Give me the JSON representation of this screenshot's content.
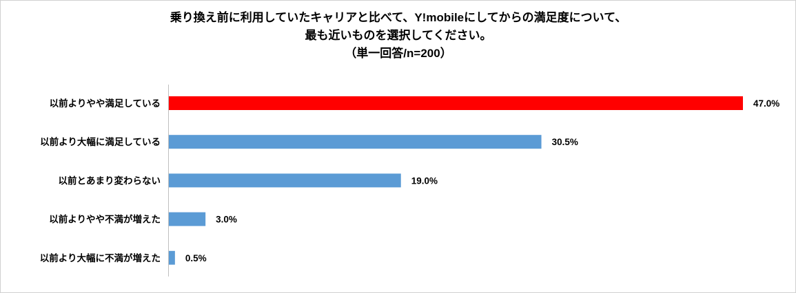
{
  "chart_data": {
    "type": "bar",
    "orientation": "horizontal",
    "title": [
      "乗り換え前に利用していたキャリアと比べて、Y!mobileにしてからの満足度について、",
      "最も近いものを選択してください。",
      "（単一回答/n=200）"
    ],
    "categories": [
      "以前よりやや満足している",
      "以前より大幅に満足している",
      "以前とあまり変わらない",
      "以前よりやや不満が増えた",
      "以前より大幅に不満が増えた"
    ],
    "values": [
      47.0,
      30.5,
      19.0,
      3.0,
      0.5
    ],
    "value_labels": [
      "47.0%",
      "30.5%",
      "19.0%",
      "3.0%",
      "0.5%"
    ],
    "colors": [
      "#ff0000",
      "#5b9bd5",
      "#5b9bd5",
      "#5b9bd5",
      "#5b9bd5"
    ],
    "xlim": [
      0,
      47
    ],
    "xlabel": "",
    "ylabel": "",
    "grid": false,
    "legend": "none"
  }
}
